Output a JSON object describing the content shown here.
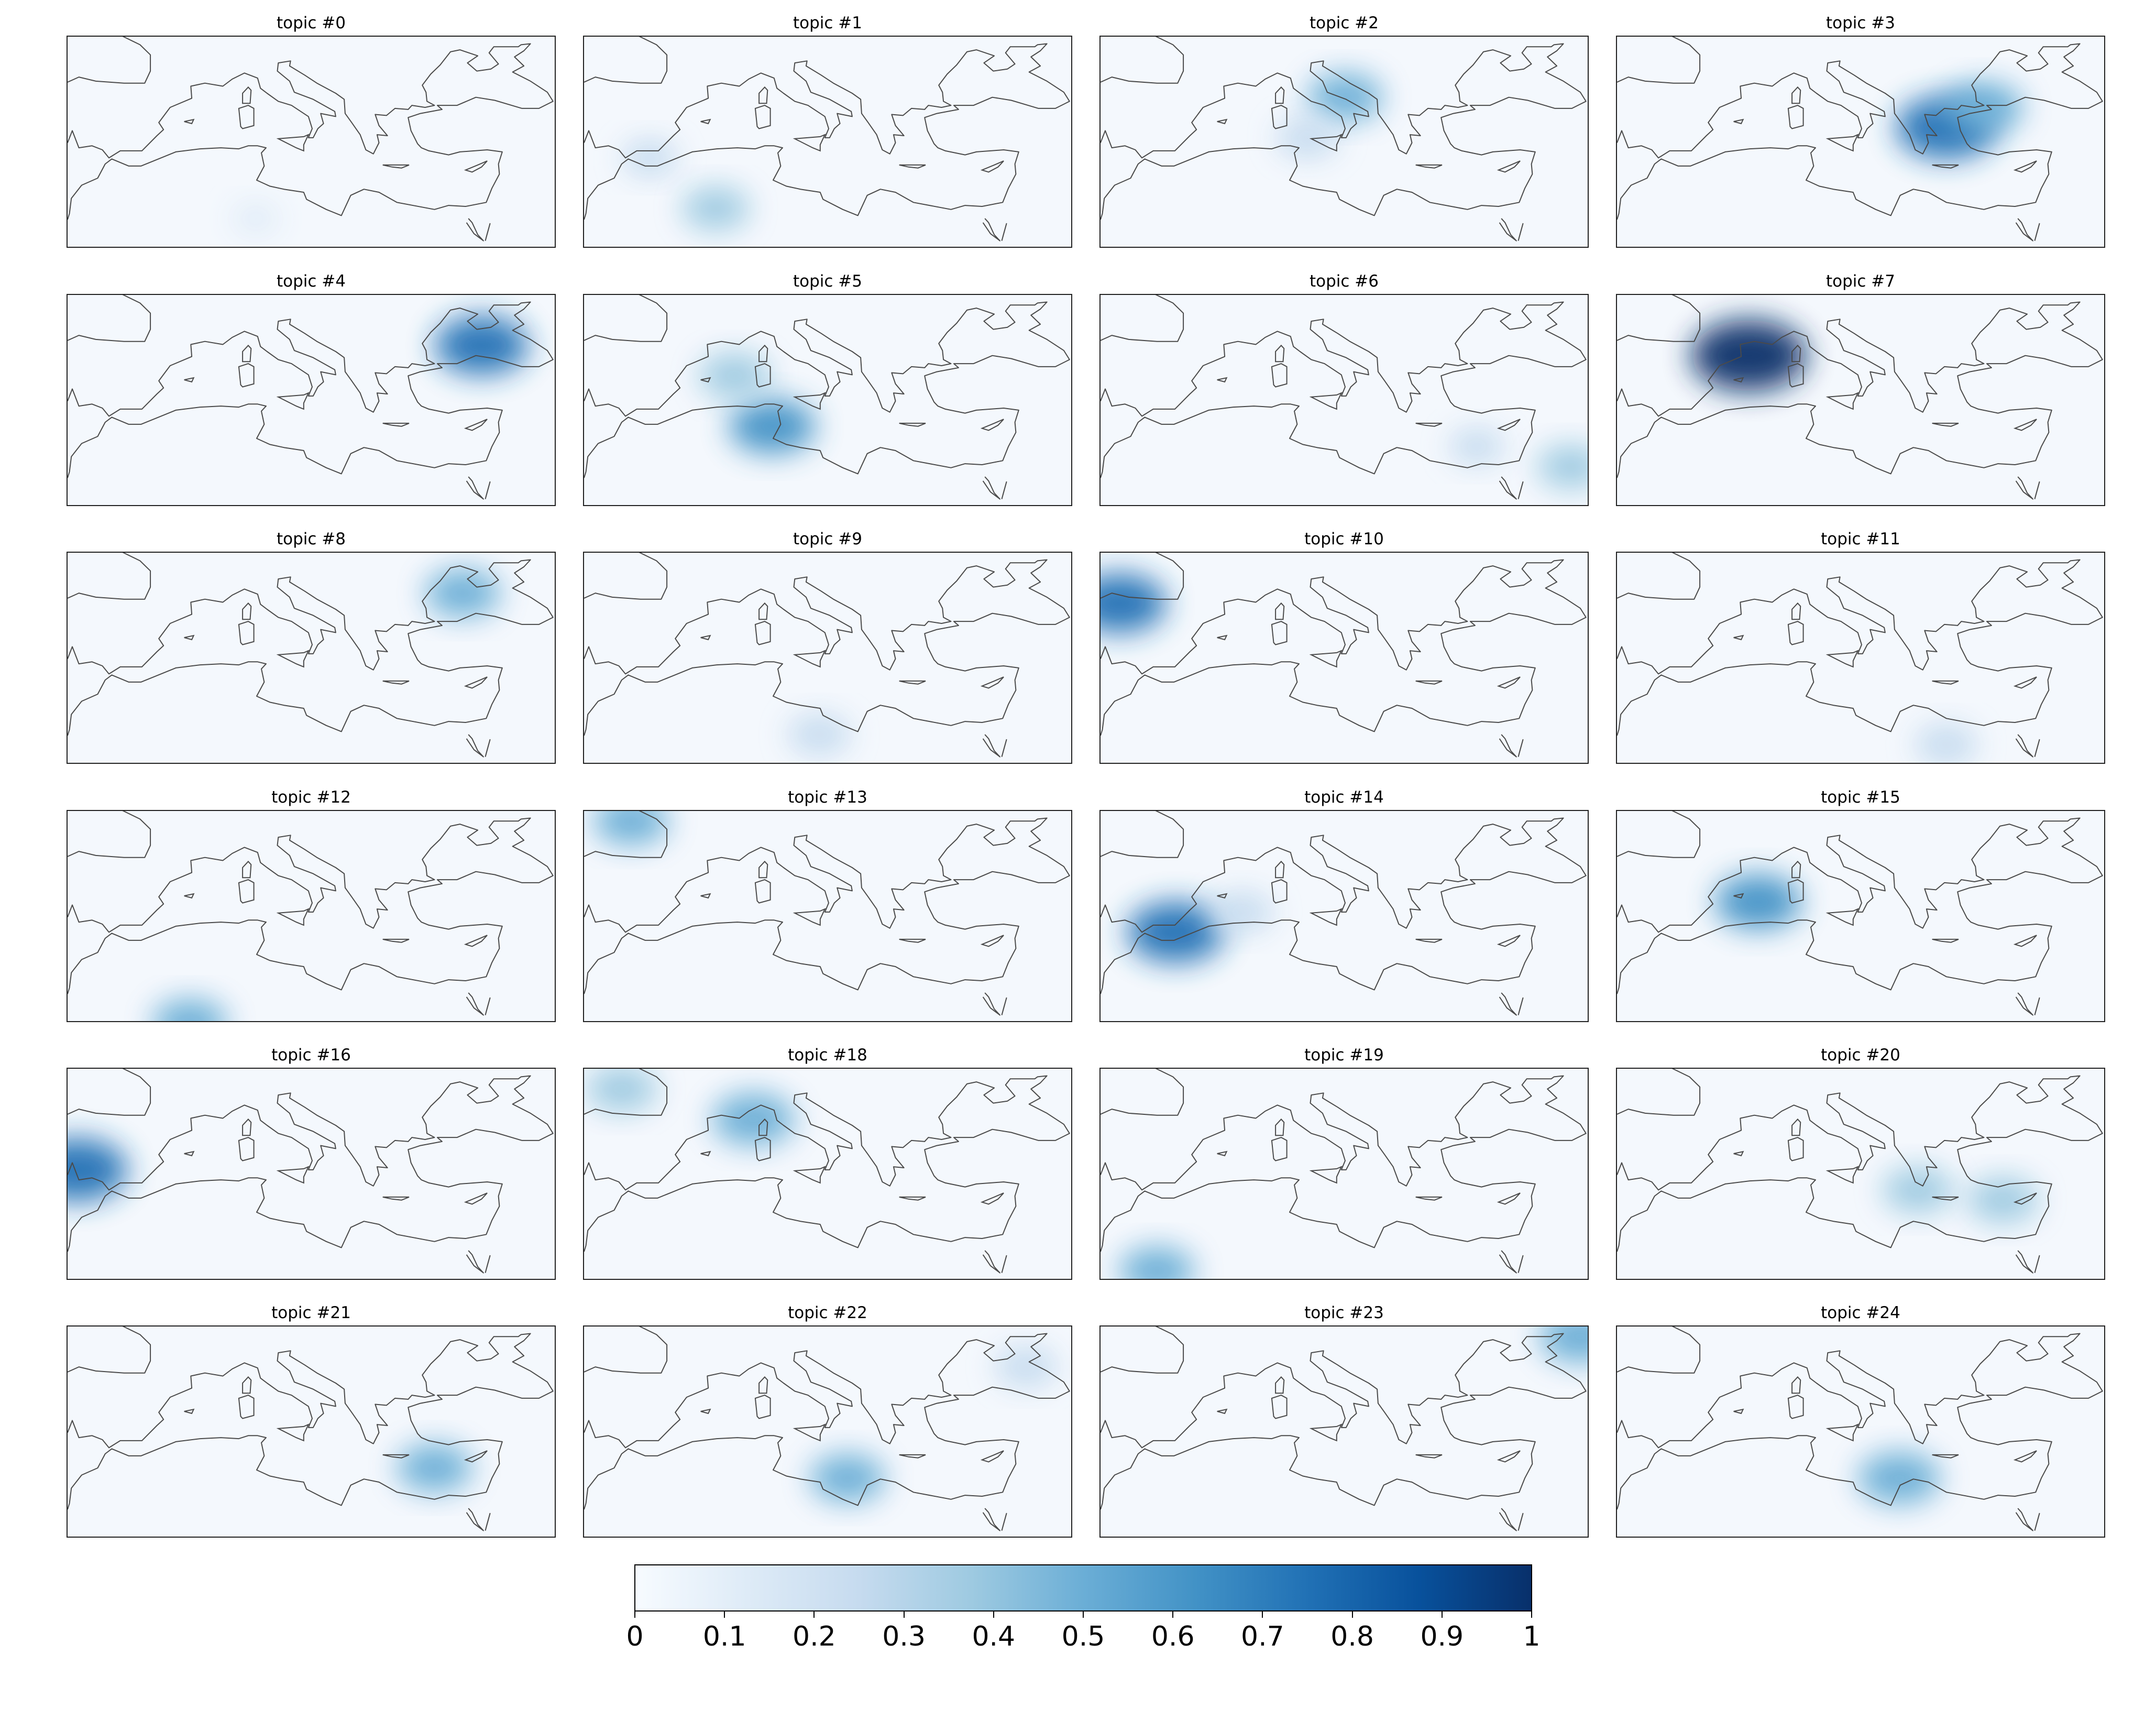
{
  "figure": {
    "panels": [
      {
        "title": "topic #0",
        "hotspots": [
          {
            "lon": 10,
            "lat": 30,
            "weight": 0.08
          }
        ]
      },
      {
        "title": "topic #1",
        "hotspots": [
          {
            "lon": 4,
            "lat": 31,
            "weight": 0.35
          },
          {
            "lon": -3,
            "lat": 36,
            "weight": 0.2
          }
        ]
      },
      {
        "title": "topic #2",
        "hotspots": [
          {
            "lon": 16,
            "lat": 42,
            "weight": 0.45
          },
          {
            "lon": 12,
            "lat": 38,
            "weight": 0.3
          }
        ]
      },
      {
        "title": "topic #3",
        "hotspots": [
          {
            "lon": 25,
            "lat": 39,
            "weight": 0.8
          },
          {
            "lon": 29,
            "lat": 41,
            "weight": 0.5
          }
        ]
      },
      {
        "title": "topic #4",
        "hotspots": [
          {
            "lon": 34,
            "lat": 43,
            "weight": 0.7
          }
        ]
      },
      {
        "title": "topic #5",
        "hotspots": [
          {
            "lon": 10,
            "lat": 35,
            "weight": 0.6
          },
          {
            "lon": 6,
            "lat": 40,
            "weight": 0.4
          }
        ]
      },
      {
        "title": "topic #6",
        "hotspots": [
          {
            "lon": 40,
            "lat": 31,
            "weight": 0.35
          },
          {
            "lon": 30,
            "lat": 33,
            "weight": 0.2
          }
        ]
      },
      {
        "title": "topic #7",
        "hotspots": [
          {
            "lon": 4,
            "lat": 42,
            "weight": 1.0
          }
        ]
      },
      {
        "title": "topic #8",
        "hotspots": [
          {
            "lon": 32,
            "lat": 44,
            "weight": 0.45
          }
        ]
      },
      {
        "title": "topic #9",
        "hotspots": [
          {
            "lon": 15,
            "lat": 30,
            "weight": 0.3
          }
        ]
      },
      {
        "title": "topic #10",
        "hotspots": [
          {
            "lon": -8,
            "lat": 43,
            "weight": 0.7
          }
        ]
      },
      {
        "title": "topic #11",
        "hotspots": [
          {
            "lon": 25,
            "lat": 29,
            "weight": 0.3
          }
        ]
      },
      {
        "title": "topic #12",
        "hotspots": [
          {
            "lon": 3,
            "lat": 27,
            "weight": 0.45
          }
        ]
      },
      {
        "title": "topic #13",
        "hotspots": [
          {
            "lon": -5,
            "lat": 47,
            "weight": 0.45
          }
        ]
      },
      {
        "title": "topic #14",
        "hotspots": [
          {
            "lon": -2,
            "lat": 36,
            "weight": 0.75
          },
          {
            "lon": 5,
            "lat": 38,
            "weight": 0.3
          }
        ]
      },
      {
        "title": "topic #15",
        "hotspots": [
          {
            "lon": 5,
            "lat": 39,
            "weight": 0.6
          }
        ]
      },
      {
        "title": "topic #16",
        "hotspots": [
          {
            "lon": -9,
            "lat": 38,
            "weight": 0.8
          }
        ]
      },
      {
        "title": "topic #18",
        "hotspots": [
          {
            "lon": 8,
            "lat": 43,
            "weight": 0.55
          },
          {
            "lon": -6,
            "lat": 46,
            "weight": 0.4
          }
        ]
      },
      {
        "title": "topic #19",
        "hotspots": [
          {
            "lon": -4,
            "lat": 28,
            "weight": 0.45
          }
        ]
      },
      {
        "title": "topic #20",
        "hotspots": [
          {
            "lon": 22,
            "lat": 36,
            "weight": 0.4
          },
          {
            "lon": 31,
            "lat": 35,
            "weight": 0.4
          }
        ]
      },
      {
        "title": "topic #21",
        "hotspots": [
          {
            "lon": 29,
            "lat": 34,
            "weight": 0.45
          }
        ]
      },
      {
        "title": "topic #22",
        "hotspots": [
          {
            "lon": 18,
            "lat": 33,
            "weight": 0.45
          },
          {
            "lon": 37,
            "lat": 44,
            "weight": 0.3
          }
        ]
      },
      {
        "title": "topic #23",
        "hotspots": [
          {
            "lon": 41,
            "lat": 47,
            "weight": 0.55
          }
        ]
      },
      {
        "title": "topic #24",
        "hotspots": [
          {
            "lon": 20,
            "lat": 33,
            "weight": 0.55
          }
        ]
      }
    ]
  },
  "colorbar": {
    "labels": [
      "0",
      "0.1",
      "0.2",
      "0.3",
      "0.4",
      "0.5",
      "0.6",
      "0.7",
      "0.8",
      "0.9",
      "1"
    ],
    "values": [
      0,
      0.1,
      0.2,
      0.3,
      0.4,
      0.5,
      0.6,
      0.7,
      0.8,
      0.9,
      1.0
    ],
    "range": [
      0,
      1
    ],
    "colormap": "Blues",
    "colors": [
      "#f7fbff",
      "#deebf7",
      "#c6dbef",
      "#9ecae1",
      "#6baed6",
      "#4292c6",
      "#2171b5",
      "#08519c",
      "#08306b"
    ]
  },
  "map_extent": {
    "lon": [
      -10,
      42
    ],
    "lat": [
      27,
      48
    ]
  }
}
